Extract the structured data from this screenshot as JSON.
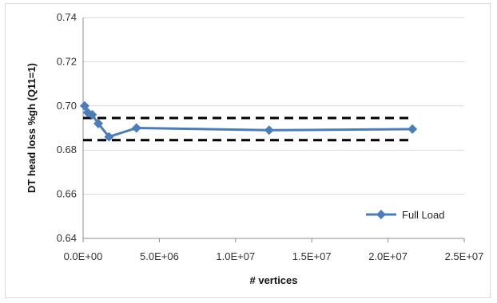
{
  "chart_data": {
    "type": "line",
    "title": "",
    "xlabel": "# vertices",
    "ylabel": "DT head loss %gh (Q11=1)",
    "xlim": [
      0,
      25000000
    ],
    "ylim": [
      0.64,
      0.74
    ],
    "x_ticks": [
      0,
      5000000,
      10000000,
      15000000,
      20000000,
      25000000
    ],
    "x_tick_labels": [
      "0.0E+00",
      "5.0E+06",
      "1.0E+07",
      "1.5E+07",
      "2.0E+07",
      "2.5E+07"
    ],
    "y_ticks": [
      0.64,
      0.66,
      0.68,
      0.7,
      0.72,
      0.74
    ],
    "y_tick_labels": [
      "0.64",
      "0.66",
      "0.68",
      "0.70",
      "0.72",
      "0.74"
    ],
    "grid": "horizontal",
    "legend_position": "bottom-right",
    "series": [
      {
        "name": "Full Load",
        "color": "#4a7ebb",
        "marker": "diamond",
        "x": [
          100000,
          300000,
          600000,
          1000000,
          1700000,
          3500000,
          12200000,
          21600000
        ],
        "y": [
          0.7,
          0.697,
          0.696,
          0.692,
          0.686,
          0.69,
          0.689,
          0.6895
        ]
      }
    ],
    "reference_lines": [
      {
        "y": 0.6945,
        "x_range": [
          0,
          21600000
        ],
        "style": "dashed",
        "color": "#000000"
      },
      {
        "y": 0.6845,
        "x_range": [
          0,
          21600000
        ],
        "style": "dashed",
        "color": "#000000"
      }
    ]
  }
}
